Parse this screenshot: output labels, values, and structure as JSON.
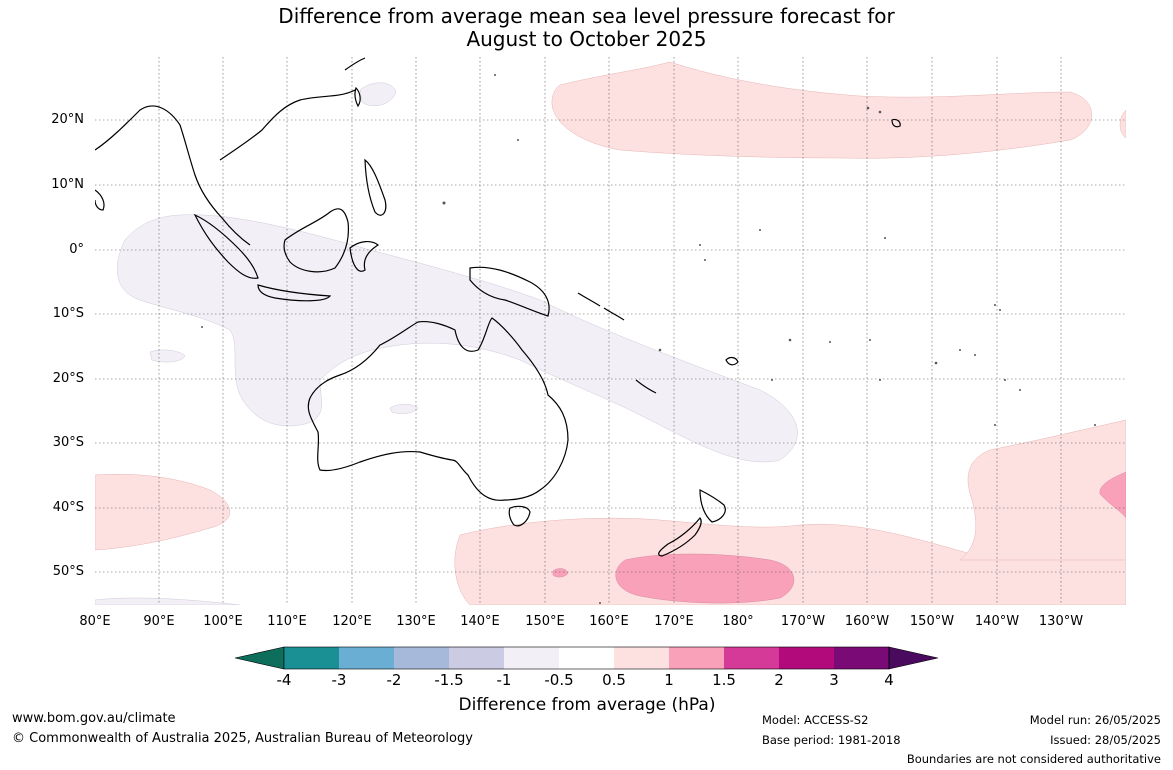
{
  "title": {
    "line1": "Difference from average mean sea level pressure forecast for",
    "line2": "August to October 2025"
  },
  "lat_labels": [
    "20°N",
    "10°N",
    "0°",
    "10°S",
    "20°S",
    "30°S",
    "40°S",
    "50°S"
  ],
  "lon_labels": [
    "80°E",
    "90°E",
    "100°E",
    "110°E",
    "120°E",
    "130°E",
    "140°E",
    "150°E",
    "160°E",
    "170°E",
    "180°",
    "170°W",
    "160°W",
    "150°W",
    "140°W",
    "130°W"
  ],
  "legend": {
    "title": "Difference from average (hPa)",
    "ticks": [
      "-4",
      "-3",
      "-2",
      "-1.5",
      "-1",
      "-0.5",
      "0.5",
      "1",
      "1.5",
      "2",
      "3",
      "4"
    ],
    "colors": [
      "#0e6e5c",
      "#1a9094",
      "#6aaed3",
      "#a7b9db",
      "#cbcbe3",
      "#f3eff6",
      "#ffffff",
      "#fde0e0",
      "#f8a1b8",
      "#d63a98",
      "#b20a7b",
      "#7a0a76",
      "#4a0a5e"
    ]
  },
  "regions": [
    {
      "name": "negative-anomaly-region",
      "level": "-0.5 to -1 hPa",
      "color": "#f3eff6"
    },
    {
      "name": "positive-anomaly-region",
      "level": "0.5 to 1 hPa",
      "color": "#fde0e0"
    },
    {
      "name": "strong-positive-anomaly-region",
      "level": "1 to 1.5 hPa",
      "color": "#f8a1b8"
    }
  ],
  "footer": {
    "url": "www.bom.gov.au/climate",
    "copyright": "© Commonwealth of Australia 2025, Australian Bureau of Meteorology",
    "model": "Model: ACCESS-S2",
    "base_period": "Base period: 1981-2018",
    "model_run": "Model run: 26/05/2025",
    "issued": "Issued: 28/05/2025",
    "disclaimer": "Boundaries are not considered authoritative"
  }
}
